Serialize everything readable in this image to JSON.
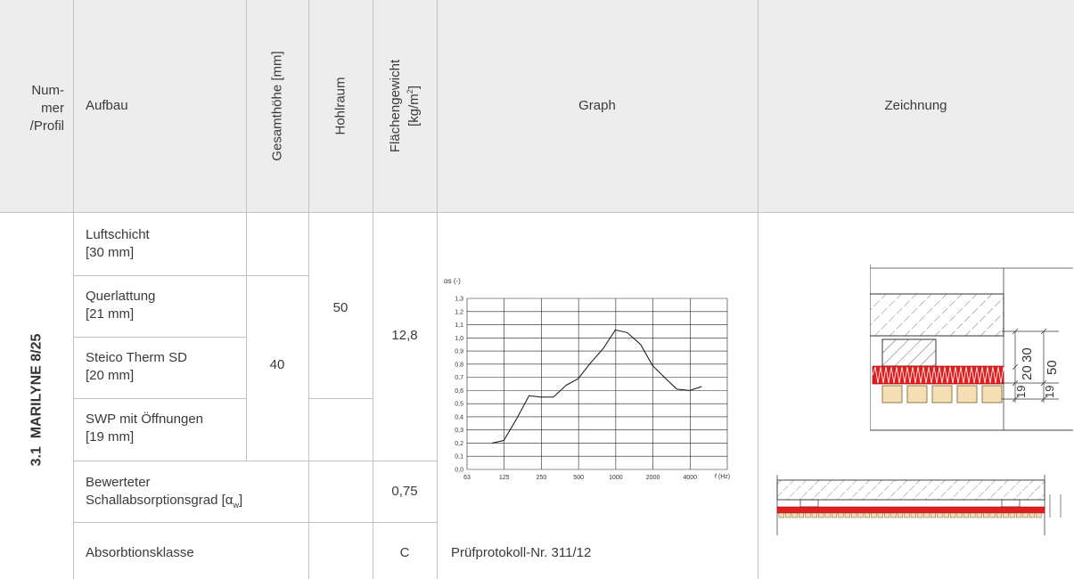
{
  "header": {
    "nummer": [
      "Num-",
      "mer",
      "/Profil"
    ],
    "aufbau": "Aufbau",
    "gesamthoehe": "Gesamthöhe [mm]",
    "hohlraum": "Hohlraum",
    "flaechengewicht_1": "Flächengewicht",
    "flaechengewicht_2": "[kg/m",
    "flaechengewicht_sup": "2",
    "flaechengewicht_end": "]",
    "graph": "Graph",
    "zeichnung": "Zeichnung"
  },
  "profile": {
    "number": "3.1",
    "name": "MARILYNE 8/25"
  },
  "layers": [
    {
      "name": "Luftschicht",
      "thickness": "[30 mm]"
    },
    {
      "name": "Querlattung",
      "thickness": "[21 mm]"
    },
    {
      "name": "Steico Therm SD",
      "thickness": "[20 mm]"
    },
    {
      "name": "SWP mit Öffnungen",
      "thickness": "[19 mm]"
    }
  ],
  "values": {
    "gesamthoehe": "40",
    "hohlraum": "50",
    "flaechengewicht": "12,8"
  },
  "rating": {
    "label_1": "Bewerteter",
    "label_2": "Schallabsorptionsgrad [α",
    "label_sub": "w",
    "label_end": "]",
    "value": "0,75"
  },
  "klasse": {
    "label": "Absorbtionsklasse",
    "value": "C"
  },
  "pruefprotokoll": "Prüfprotokoll-Nr. 311/12",
  "drawing_dims": {
    "d30": "30",
    "d20": "20",
    "d50": "50",
    "d19a": "19",
    "d19b": "19"
  },
  "chart_data": {
    "type": "line",
    "ylabel": "αs (-)",
    "xlabel": "f (Hz)",
    "ylim": [
      0,
      1.3
    ],
    "y_ticks": [
      "0,0",
      "0,1",
      "0,2",
      "0,3",
      "0,4",
      "0,5",
      "0,6",
      "0,7",
      "0,8",
      "0,9",
      "1,0",
      "1,1",
      "1,2",
      "1,3"
    ],
    "x_ticks": [
      "63",
      "125",
      "250",
      "500",
      "1000",
      "2000",
      "4000"
    ],
    "grid": true,
    "series": [
      {
        "x": [
          100,
          125,
          160,
          200,
          250,
          315,
          400,
          500,
          630,
          800,
          1000,
          1250,
          1600,
          2000,
          2500,
          3150,
          4000,
          5000
        ],
        "values": [
          0.2,
          0.22,
          0.39,
          0.56,
          0.55,
          0.55,
          0.64,
          0.69,
          0.81,
          0.92,
          1.06,
          1.04,
          0.95,
          0.79,
          0.7,
          0.61,
          0.6,
          0.63
        ]
      }
    ]
  }
}
